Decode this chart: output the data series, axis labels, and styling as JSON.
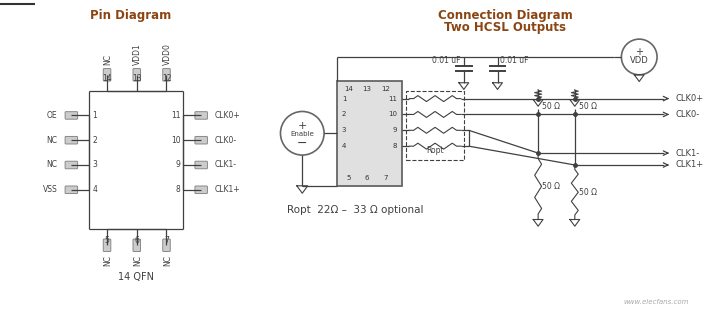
{
  "title_pin": "Pin Diagram",
  "title_conn1": "Connection Diagram",
  "title_conn2": "Two HCSL Outputs",
  "title_color": "#8B4513",
  "bg_color": "#ffffff",
  "line_color": "#404040",
  "top_line_color": "#222222",
  "qfn_label": "14 QFN",
  "ropt_label": "Ropt  22Ω –  33 Ω optional",
  "cap_label1": "0.01 uF",
  "cap_label2": "0.01 uF",
  "vdd_label": "VDD",
  "enable_plus": "+",
  "enable_label": "Enable",
  "enable_minus": "−"
}
